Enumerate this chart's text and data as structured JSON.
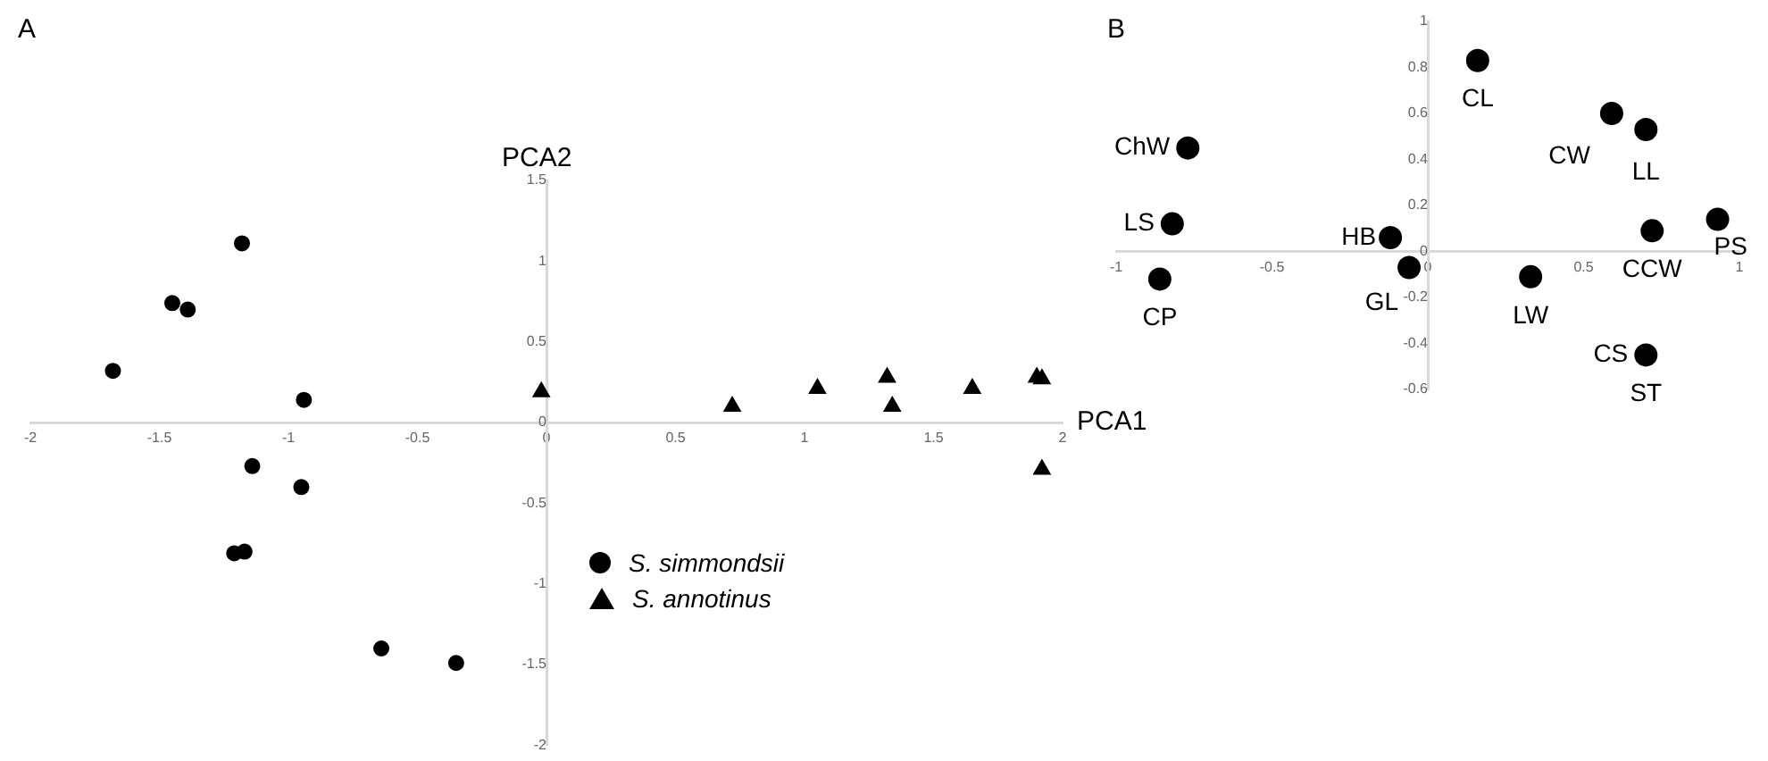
{
  "chart_data": [
    {
      "type": "scatter",
      "title": "A",
      "xlabel": "PCA1",
      "ylabel": "PCA2",
      "xlim": [
        -2,
        2
      ],
      "ylim": [
        -2,
        1.5
      ],
      "xticks": [
        -2,
        -1.5,
        -1,
        -0.5,
        0,
        0.5,
        1,
        1.5,
        2
      ],
      "yticks": [
        -2,
        -1.5,
        -1,
        -0.5,
        0,
        0.5,
        1,
        1.5
      ],
      "grid": false,
      "legend": "bottom",
      "series": [
        {
          "name": "S. simmondsii",
          "color": "#000000",
          "marker": "circle",
          "x": [
            -1.18,
            -1.45,
            -1.39,
            -1.68,
            -0.94,
            -1.14,
            -0.95,
            -1.21,
            -1.17,
            -0.64,
            -0.35
          ],
          "values": [
            1.11,
            0.74,
            0.7,
            0.32,
            0.14,
            -0.27,
            -0.4,
            -0.81,
            -0.8,
            -1.4,
            -1.49
          ]
        },
        {
          "name": "S. annotinus",
          "color": "#000000",
          "marker": "triangle",
          "x": [
            -0.02,
            0.72,
            1.05,
            1.32,
            1.34,
            1.65,
            1.9,
            1.92,
            1.92
          ],
          "values": [
            0.19,
            0.1,
            0.21,
            0.28,
            0.1,
            0.21,
            0.28,
            0.27,
            -0.29
          ]
        }
      ]
    },
    {
      "type": "scatter",
      "title": "B",
      "xlim": [
        -1,
        1
      ],
      "ylim": [
        -0.6,
        1
      ],
      "xticks": [
        -1,
        -0.5,
        0,
        0.5,
        1
      ],
      "yticks": [
        -0.6,
        -0.4,
        -0.2,
        0,
        0.2,
        0.4,
        0.6,
        0.8,
        1
      ],
      "grid": false,
      "legend": false,
      "series": [
        {
          "color": "#000000",
          "marker": "circle",
          "x": [
            0.16,
            0.59,
            0.7,
            -0.77,
            -0.82,
            0.93,
            0.72,
            -0.12,
            -0.06,
            -0.86,
            0.33,
            0.7
          ],
          "values": [
            0.83,
            0.6,
            0.53,
            0.45,
            0.12,
            0.14,
            0.09,
            0.06,
            -0.07,
            -0.12,
            -0.11,
            -0.45
          ]
        }
      ],
      "annotations": [
        {
          "text": "CL",
          "x": 0.16,
          "y": 0.83
        },
        {
          "text": "CW",
          "x": 0.59,
          "y": 0.6
        },
        {
          "text": "LL",
          "x": 0.7,
          "y": 0.53
        },
        {
          "text": "ChW",
          "x": -0.77,
          "y": 0.45
        },
        {
          "text": "LS",
          "x": -0.82,
          "y": 0.12
        },
        {
          "text": "PS",
          "x": 0.93,
          "y": 0.14
        },
        {
          "text": "CCW",
          "x": 0.72,
          "y": 0.09
        },
        {
          "text": "HB",
          "x": -0.12,
          "y": 0.06
        },
        {
          "text": "GL",
          "x": -0.06,
          "y": -0.07
        },
        {
          "text": "CP",
          "x": -0.86,
          "y": -0.12
        },
        {
          "text": "LW",
          "x": 0.33,
          "y": -0.11
        },
        {
          "text": "CS",
          "x": 0.7,
          "y": -0.45
        },
        {
          "text": "ST",
          "x": 0.7,
          "y": -0.45
        }
      ]
    }
  ]
}
